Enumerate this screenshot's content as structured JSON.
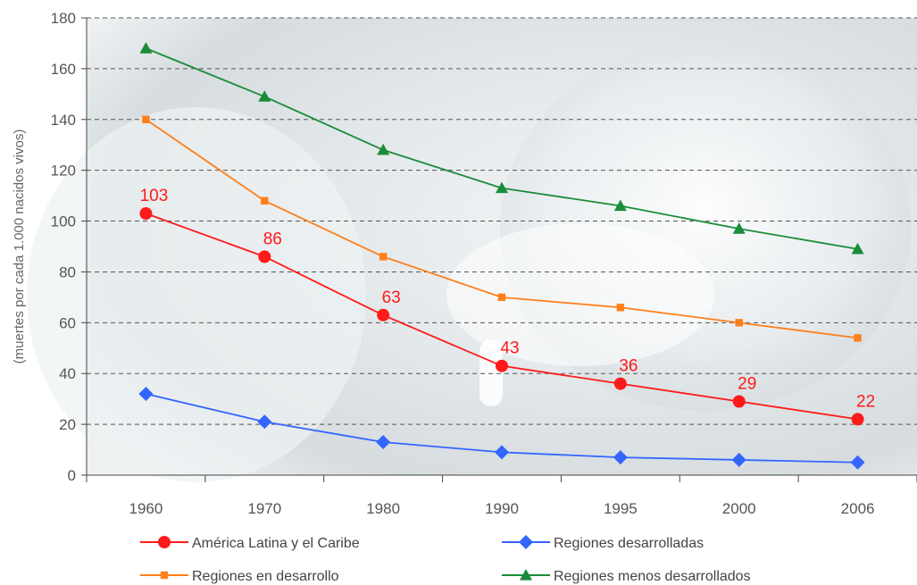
{
  "chart_data": {
    "type": "line",
    "title": "",
    "xlabel": "",
    "ylabel": "(muertes por cada 1.000 nacidos vivos)",
    "x": [
      "1960",
      "1970",
      "1980",
      "1990",
      "1995",
      "2000",
      "2006"
    ],
    "ylim": [
      0,
      180
    ],
    "yticks": [
      "0",
      "20",
      "40",
      "60",
      "80",
      "100",
      "120",
      "140",
      "160",
      "180"
    ],
    "grid": true,
    "legend_position": "bottom",
    "series": [
      {
        "name": "América Latina y el Caribe",
        "values": [
          103,
          86,
          63,
          43,
          36,
          29,
          22
        ],
        "color": "#ff1a1a",
        "marker": "circle",
        "data_labels": [
          "103",
          "86",
          "63",
          "43",
          "36",
          "29",
          "22"
        ]
      },
      {
        "name": "Regiones desarrolladas",
        "values": [
          32,
          21,
          13,
          9,
          7,
          6,
          5
        ],
        "color": "#3366ff",
        "marker": "diamond"
      },
      {
        "name": "Regiones en desarrollo",
        "values": [
          140,
          108,
          86,
          70,
          66,
          60,
          54
        ],
        "color": "#ff7f1a",
        "marker": "square"
      },
      {
        "name": "Regiones menos desarrollados",
        "values": [
          168,
          149,
          128,
          113,
          106,
          97,
          89
        ],
        "color": "#1a8c3a",
        "marker": "triangle"
      }
    ]
  }
}
